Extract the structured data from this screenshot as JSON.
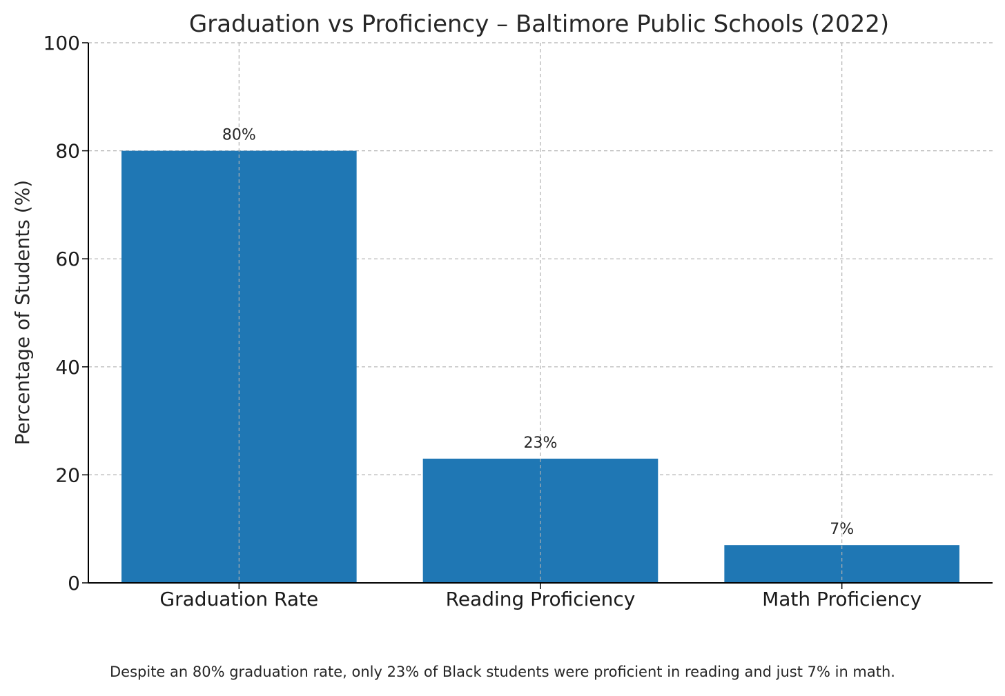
{
  "chart_data": {
    "type": "bar",
    "title": "Graduation vs Proficiency – Baltimore Public Schools (2022)",
    "xlabel": "",
    "ylabel": "Percentage of Students (%)",
    "ylim": [
      0,
      100
    ],
    "yticks": [
      0,
      20,
      40,
      60,
      80,
      100
    ],
    "grid": true,
    "categories": [
      "Graduation Rate",
      "Reading Proficiency",
      "Math Proficiency"
    ],
    "values": [
      80,
      23,
      7
    ],
    "data_labels": [
      "80%",
      "23%",
      "7%"
    ],
    "bar_color": "#1f77b4"
  },
  "caption": "Despite an 80% graduation rate, only 23% of Black students were proficient in reading and just 7% in math."
}
